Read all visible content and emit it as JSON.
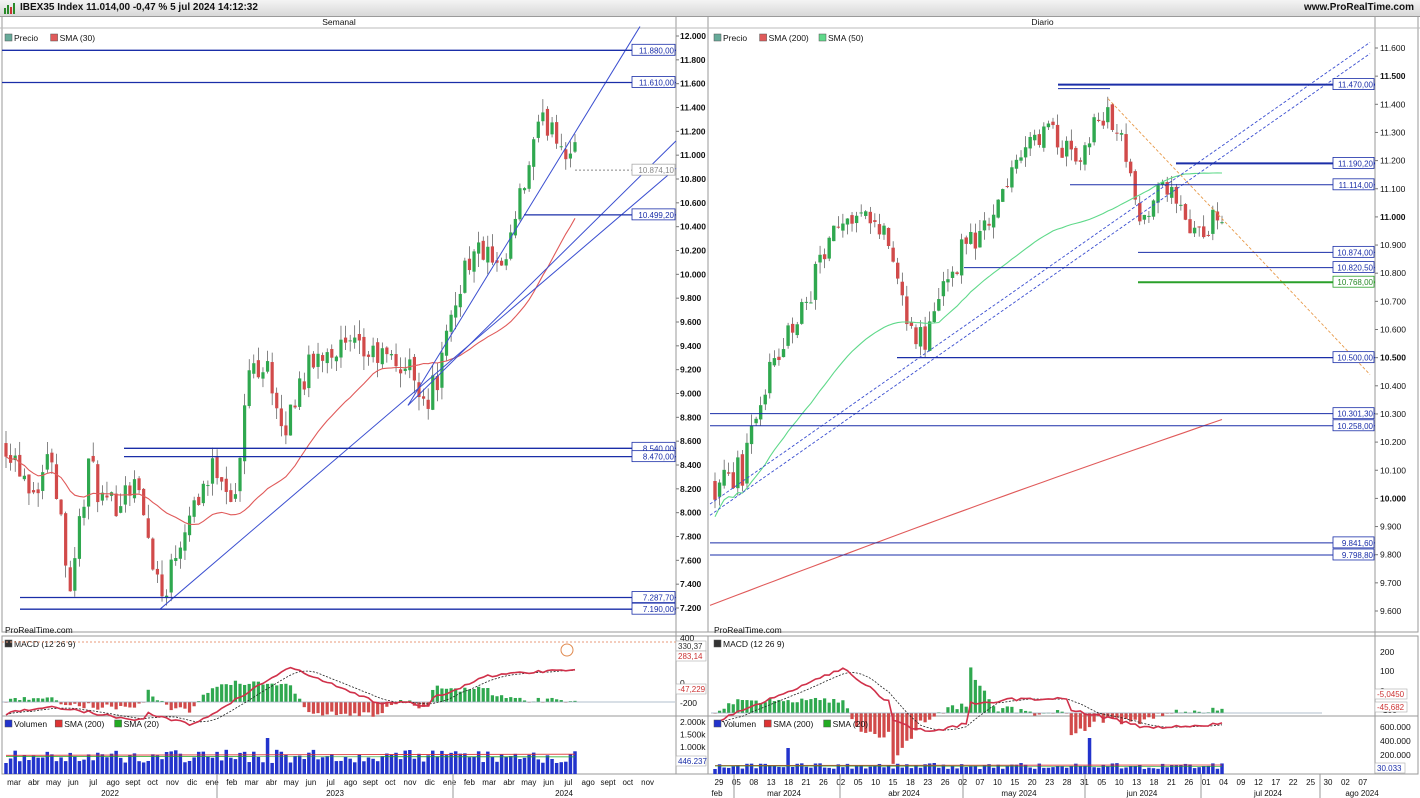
{
  "window": {
    "title": "IBEX35 Index 11.014,00 -0,47 % 5 jul 2024 14:12:32",
    "site": "www.ProRealTime.com"
  },
  "colors": {
    "candle_up": "#2fa84f",
    "candle_down": "#d14a4a",
    "sma_red": "#e05a5a",
    "sma_green": "#5fd98a",
    "level_line": "#1a2ea8",
    "trend_line": "#3a4ed0",
    "macd_line": "#d0314a",
    "signal_line": "#222222",
    "volume_bar": "#2233cc"
  },
  "panels": {
    "weekly": {
      "header": "Semanal",
      "legend": {
        "price": "Precio",
        "sma": "SMA (30)"
      },
      "watermark": "ProRealTime.com",
      "price_axis": [
        "12.000",
        "11.800",
        "11.600",
        "11.400",
        "11.200",
        "11.000",
        "10.800",
        "10.600",
        "10.400",
        "10.200",
        "10.000",
        "9.800",
        "9.600",
        "9.400",
        "9.200",
        "9.000",
        "8.800",
        "8.600",
        "8.400",
        "8.200",
        "8.000",
        "7.800",
        "7.600",
        "7.400",
        "7.200"
      ],
      "level_boxes": [
        "11.880,00",
        "11.610,00",
        "10.874,10",
        "10.499,20",
        "8.540,00",
        "8.470,00",
        "7.287,70",
        "7.190,00"
      ],
      "macd": {
        "legend": "MACD (12 26 9)",
        "axis": [
          "400",
          "0",
          "-200"
        ],
        "boxes": [
          "330,37",
          "283,14",
          "-47,229"
        ]
      },
      "volume": {
        "legend": [
          "Volumen",
          "SMA (200)",
          "SMA (20)"
        ],
        "axis": [
          "2.000k",
          "1.500k",
          "1.000k",
          "500k"
        ],
        "box": "446.237"
      },
      "months": [
        "mar",
        "abr",
        "may",
        "jun",
        "jul",
        "ago",
        "sept",
        "oct",
        "nov",
        "dic",
        "ene",
        "feb",
        "mar",
        "abr",
        "may",
        "jun",
        "jul",
        "ago",
        "sept",
        "oct",
        "nov",
        "dic",
        "ene",
        "feb",
        "mar",
        "abr",
        "may",
        "jun",
        "jul",
        "ago",
        "sept",
        "oct",
        "nov"
      ],
      "years": [
        "2022",
        "2023",
        "2024"
      ]
    },
    "daily": {
      "header": "Diario",
      "legend": {
        "price": "Precio",
        "sma200": "SMA (200)",
        "sma50": "SMA (50)"
      },
      "watermark": "ProRealTime.com",
      "price_axis": [
        "11.600",
        "11.500",
        "11.400",
        "11.300",
        "11.200",
        "11.100",
        "11.000",
        "10.900",
        "10.800",
        "10.700",
        "10.600",
        "10.500",
        "10.400",
        "10.300",
        "10.200",
        "10.100",
        "10.000",
        "9.900",
        "9.800",
        "9.700",
        "9.600"
      ],
      "level_boxes": [
        "11.470,00",
        "11.190,20",
        "11.114,00",
        "10.874,00",
        "10.820,50",
        "10.768,00",
        "10.500,00",
        "10.301,30",
        "10.258,00",
        "9.841,60",
        "9.798,80"
      ],
      "macd": {
        "legend": "MACD (12 26 9)",
        "axis": [
          "200",
          "100",
          "0",
          "-100"
        ],
        "boxes": [
          "-5,0450",
          "-45,682"
        ]
      },
      "volume": {
        "legend": [
          "Volumen",
          "SMA (200)",
          "SMA (20)"
        ],
        "axis": [
          "600.000",
          "400.000",
          "200.000"
        ],
        "box": "30.033"
      },
      "days": [
        "29",
        "05",
        "08",
        "13",
        "18",
        "21",
        "26",
        "02",
        "05",
        "10",
        "15",
        "18",
        "23",
        "26",
        "02",
        "07",
        "10",
        "15",
        "20",
        "23",
        "28",
        "31",
        "05",
        "10",
        "13",
        "18",
        "21",
        "26",
        "01",
        "04",
        "09",
        "12",
        "17",
        "22",
        "25",
        "30",
        "02",
        "07"
      ],
      "month_labels": [
        "feb",
        "mar 2024",
        "abr 2024",
        "may 2024",
        "jun 2024",
        "jul 2024",
        "ago 2024"
      ]
    }
  }
}
